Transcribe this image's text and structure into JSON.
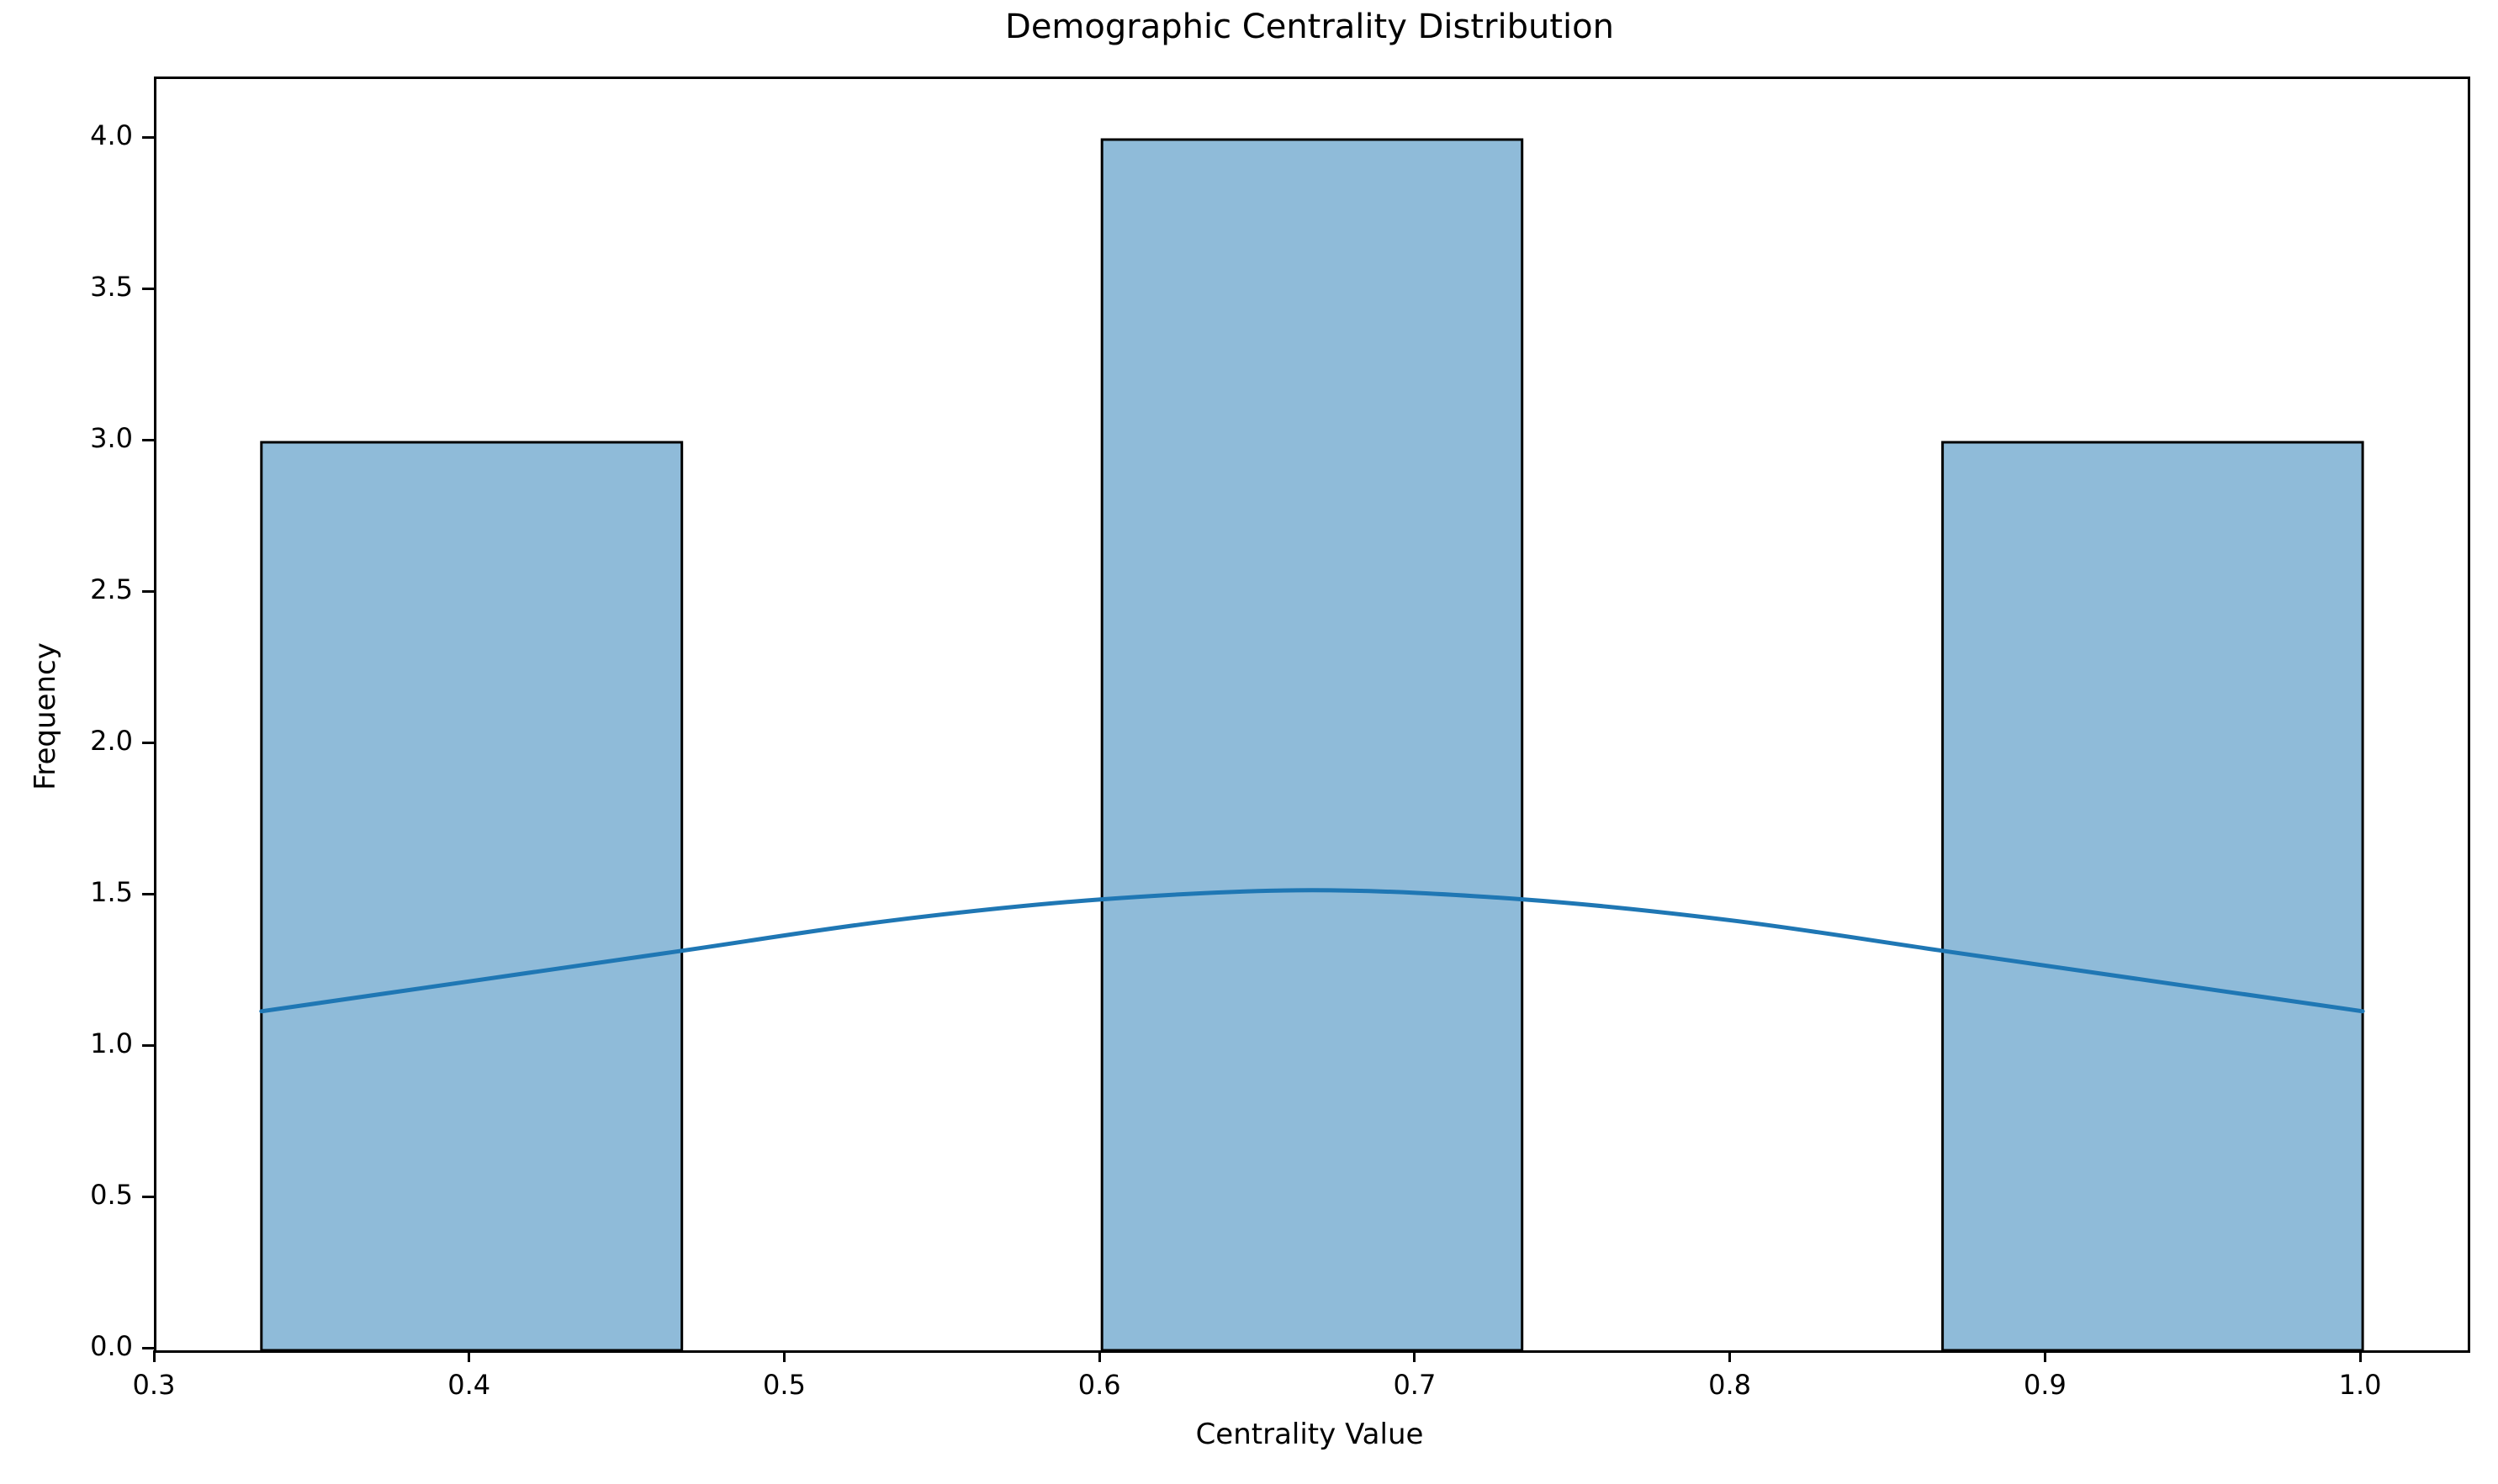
{
  "figure": {
    "background": "#ffffff"
  },
  "chart_data": {
    "type": "bar",
    "subtype": "histogram_with_kde",
    "title": "Demographic Centrality Distribution",
    "xlabel": "Centrality Value",
    "ylabel": "Frequency",
    "xlim": [
      0.3,
      1.03333
    ],
    "ylim": [
      0.0,
      4.2
    ],
    "grid": false,
    "legend": "none",
    "xticks": [
      0.3,
      0.4,
      0.5,
      0.6,
      0.7,
      0.8,
      0.9,
      1.0
    ],
    "xtick_labels": [
      "0.3",
      "0.4",
      "0.5",
      "0.6",
      "0.7",
      "0.8",
      "0.9",
      "1.0"
    ],
    "yticks": [
      0.0,
      0.5,
      1.0,
      1.5,
      2.0,
      2.5,
      3.0,
      3.5,
      4.0
    ],
    "ytick_labels": [
      "0.0",
      "0.5",
      "1.0",
      "1.5",
      "2.0",
      "2.5",
      "3.0",
      "3.5",
      "4.0"
    ],
    "bins": [
      {
        "start": 0.3333,
        "end": 0.4667,
        "count": 3
      },
      {
        "start": 0.6,
        "end": 0.7333,
        "count": 4
      },
      {
        "start": 0.8667,
        "end": 1.0,
        "count": 3
      }
    ],
    "kde_curve": {
      "x": [
        0.3333,
        0.4,
        0.4667,
        0.5333,
        0.6,
        0.6667,
        0.7333,
        0.8,
        0.8667,
        0.9333,
        1.0
      ],
      "y": [
        1.12,
        1.22,
        1.32,
        1.42,
        1.49,
        1.52,
        1.49,
        1.42,
        1.32,
        1.22,
        1.12
      ]
    },
    "colors": {
      "bar_fill": "#1f77b4",
      "bar_fill_alpha": 0.5,
      "bar_edge": "#000000",
      "kde_line": "#1f77b4",
      "axis": "#000000",
      "text": "#000000"
    }
  }
}
